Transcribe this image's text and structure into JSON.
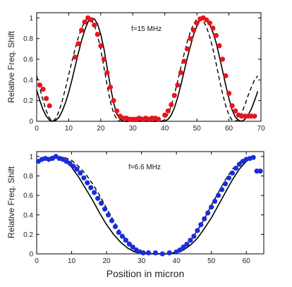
{
  "chart_data": [
    {
      "type": "scatter",
      "annotation": "f=15 MHz",
      "xlabel": "",
      "ylabel": "Relative Freq. Shift",
      "xlim": [
        0,
        70
      ],
      "ylim": [
        0,
        1.05
      ],
      "xticks": [
        0,
        10,
        20,
        30,
        40,
        50,
        60,
        70
      ],
      "yticks": [
        0,
        0.2,
        0.4,
        0.6,
        0.8,
        1
      ],
      "ytick_labels": [
        "0",
        "0.2",
        "0.4",
        "0.6",
        "0.8",
        "1"
      ],
      "marker_color": "#e8141b",
      "series": [
        {
          "kind": "points",
          "x": [
            1,
            2,
            3,
            4,
            12,
            13,
            14,
            15,
            16,
            17,
            18,
            19,
            20,
            21,
            22,
            23,
            24,
            25,
            26,
            27,
            28,
            29,
            30,
            31,
            32,
            33,
            34,
            35,
            36,
            37,
            38,
            40,
            41,
            42,
            43,
            44,
            45,
            46,
            47,
            48,
            49,
            50,
            51,
            52,
            53,
            54,
            55,
            56,
            57,
            58,
            59,
            60,
            61,
            62,
            63,
            64,
            65,
            66,
            67,
            68
          ],
          "y": [
            0.35,
            0.31,
            0.22,
            0.15,
            0.62,
            0.75,
            0.88,
            0.96,
            1.0,
            0.98,
            0.93,
            0.84,
            0.73,
            0.6,
            0.47,
            0.33,
            0.2,
            0.1,
            0.05,
            0.03,
            0.03,
            0.02,
            0.02,
            0.02,
            0.03,
            0.02,
            0.03,
            0.02,
            0.03,
            0.03,
            0.02,
            0.06,
            0.1,
            0.16,
            0.25,
            0.35,
            0.47,
            0.58,
            0.7,
            0.8,
            0.88,
            0.95,
            0.99,
            1.0,
            0.98,
            0.95,
            0.9,
            0.83,
            0.73,
            0.6,
            0.44,
            0.27,
            0.15,
            0.1,
            0.06,
            0.05,
            0.05,
            0.05,
            0.05,
            0.05
          ]
        },
        {
          "kind": "solid",
          "x": [
            0,
            1,
            2,
            3,
            4,
            5,
            6,
            7,
            8,
            9,
            10,
            11,
            12,
            13,
            14,
            15,
            16,
            17,
            18,
            19,
            20,
            21,
            22,
            23,
            24,
            25,
            26,
            27,
            28,
            29,
            30,
            31,
            32,
            33,
            34,
            35,
            36,
            37,
            38,
            39,
            40,
            41,
            42,
            43,
            44,
            45,
            46,
            47,
            48,
            49,
            50,
            51,
            52,
            53,
            54,
            55,
            56,
            57,
            58,
            59,
            60,
            61,
            62,
            63,
            64,
            65,
            66,
            67,
            68,
            69
          ],
          "y": [
            0.3,
            0.2,
            0.11,
            0.05,
            0.01,
            0.0,
            0.01,
            0.04,
            0.1,
            0.18,
            0.28,
            0.4,
            0.53,
            0.66,
            0.78,
            0.88,
            0.96,
            1.0,
            0.99,
            0.94,
            0.84,
            0.7,
            0.52,
            0.34,
            0.18,
            0.07,
            0.02,
            0.0,
            0.0,
            0.0,
            0.0,
            0.0,
            0.0,
            0.0,
            0.0,
            0.0,
            0.0,
            0.0,
            0.0,
            0.0,
            0.0,
            0.02,
            0.06,
            0.13,
            0.23,
            0.35,
            0.48,
            0.61,
            0.73,
            0.84,
            0.92,
            0.98,
            1.0,
            0.99,
            0.94,
            0.86,
            0.76,
            0.63,
            0.49,
            0.35,
            0.22,
            0.11,
            0.04,
            0.01,
            0.0,
            0.02,
            0.06,
            0.12,
            0.2,
            0.29
          ]
        },
        {
          "kind": "dashed",
          "x": [
            0,
            1,
            2,
            3,
            4,
            5,
            6,
            7,
            8,
            9,
            10,
            11,
            12,
            13,
            14,
            15,
            16,
            17,
            18,
            19,
            20,
            21,
            22,
            23,
            24,
            25,
            26,
            27,
            28,
            29,
            30,
            31,
            32,
            33,
            34,
            35,
            36,
            37,
            38,
            39,
            40,
            41,
            42,
            43,
            44,
            45,
            46,
            47,
            48,
            49,
            50,
            51,
            52,
            53,
            54,
            55,
            56,
            57,
            58,
            59,
            60,
            61,
            62,
            63,
            64,
            65,
            66,
            67,
            68,
            69
          ],
          "y": [
            0.44,
            0.32,
            0.2,
            0.1,
            0.03,
            0.0,
            0.03,
            0.1,
            0.2,
            0.32,
            0.45,
            0.58,
            0.7,
            0.81,
            0.9,
            0.96,
            1.0,
            0.98,
            0.93,
            0.83,
            0.69,
            0.52,
            0.35,
            0.19,
            0.08,
            0.02,
            0.0,
            0.0,
            0.0,
            0.0,
            0.0,
            0.0,
            0.0,
            0.0,
            0.0,
            0.0,
            0.0,
            0.0,
            0.0,
            0.0,
            0.02,
            0.07,
            0.15,
            0.26,
            0.39,
            0.52,
            0.65,
            0.77,
            0.87,
            0.94,
            0.99,
            1.0,
            0.97,
            0.91,
            0.82,
            0.7,
            0.56,
            0.41,
            0.27,
            0.15,
            0.06,
            0.01,
            0.0,
            0.02,
            0.08,
            0.16,
            0.25,
            0.33,
            0.4,
            0.44
          ]
        }
      ]
    },
    {
      "type": "scatter",
      "annotation": "f=6.6 MHz",
      "xlabel": "Position in micron",
      "ylabel": "Relative Freq. Shift",
      "xlim": [
        0,
        65
      ],
      "ylim": [
        0,
        1.05
      ],
      "xticks": [
        0,
        10,
        20,
        30,
        40,
        50,
        60
      ],
      "yticks": [
        0,
        0.2,
        0.4,
        0.6,
        0.8,
        1
      ],
      "ytick_labels": [
        "0",
        "0.2",
        "0.4",
        "0.6",
        "0.8",
        "1"
      ],
      "marker_color": "#1a2ed8",
      "series": [
        {
          "kind": "points",
          "x": [
            0.5,
            1.5,
            2.5,
            3.5,
            4.5,
            5.5,
            6.5,
            7.5,
            8.5,
            9.5,
            10.5,
            11.5,
            12.5,
            13.5,
            14.5,
            15.5,
            16.5,
            17.5,
            18.5,
            19.5,
            20.5,
            21.5,
            22.5,
            23.5,
            24.5,
            25.5,
            26.5,
            27.5,
            28.5,
            29.5,
            30.5,
            32,
            34,
            36,
            38,
            40,
            41,
            42,
            43,
            44,
            45,
            46,
            47,
            48,
            49,
            50,
            51,
            52,
            53,
            54,
            55,
            56,
            57,
            58,
            59,
            60,
            61,
            62,
            63,
            64
          ],
          "y": [
            0.95,
            0.97,
            0.98,
            0.97,
            0.98,
            1.0,
            0.98,
            0.97,
            0.95,
            0.93,
            0.9,
            0.87,
            0.83,
            0.78,
            0.73,
            0.68,
            0.63,
            0.57,
            0.52,
            0.46,
            0.4,
            0.34,
            0.28,
            0.22,
            0.18,
            0.14,
            0.1,
            0.07,
            0.04,
            0.02,
            0.01,
            0.01,
            0.01,
            0.0,
            0.01,
            0.02,
            0.04,
            0.07,
            0.1,
            0.14,
            0.18,
            0.24,
            0.3,
            0.36,
            0.42,
            0.48,
            0.54,
            0.6,
            0.66,
            0.72,
            0.78,
            0.83,
            0.88,
            0.92,
            0.95,
            0.97,
            0.98,
            0.99,
            0.85,
            0.85
          ]
        },
        {
          "kind": "solid",
          "x": [
            4,
            6,
            8,
            10,
            12,
            14,
            16,
            18,
            20,
            22,
            24,
            26,
            28,
            30,
            32,
            34,
            36,
            38,
            40,
            42,
            44,
            46,
            48,
            50,
            52,
            54,
            56,
            58,
            60,
            62
          ],
          "y": [
            1.0,
            0.99,
            0.96,
            0.89,
            0.79,
            0.67,
            0.55,
            0.42,
            0.3,
            0.2,
            0.12,
            0.06,
            0.02,
            0.0,
            0.0,
            0.0,
            0.0,
            0.0,
            0.01,
            0.04,
            0.09,
            0.16,
            0.26,
            0.37,
            0.5,
            0.63,
            0.76,
            0.87,
            0.95,
            1.0
          ]
        },
        {
          "kind": "dashed",
          "x": [
            4,
            6,
            8,
            10,
            12,
            14,
            16,
            18,
            20,
            22,
            24,
            26,
            28,
            30,
            32,
            34,
            36,
            38,
            40,
            42,
            44,
            46,
            48,
            50,
            52,
            54,
            56,
            58,
            60,
            62
          ],
          "y": [
            1.0,
            1.0,
            0.99,
            0.96,
            0.9,
            0.82,
            0.72,
            0.6,
            0.47,
            0.34,
            0.22,
            0.13,
            0.06,
            0.02,
            0.0,
            0.0,
            0.0,
            0.0,
            0.02,
            0.06,
            0.14,
            0.24,
            0.36,
            0.5,
            0.63,
            0.76,
            0.87,
            0.94,
            0.98,
            1.0
          ]
        }
      ]
    }
  ]
}
